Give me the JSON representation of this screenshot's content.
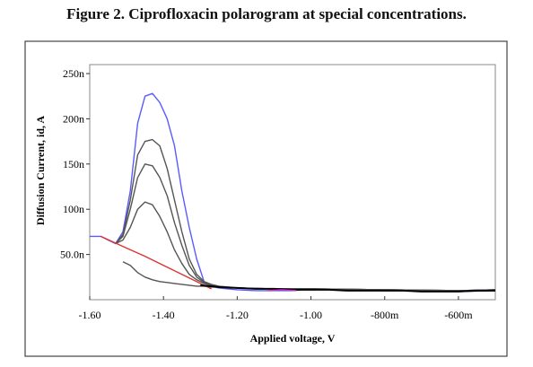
{
  "caption": "Figure 2. Ciprofloxacin polarogram at special concentrations.",
  "colors": {
    "outer_frame": "#444444",
    "plot_border": "#888888",
    "top_curve": "#5a5aff",
    "lower_curves": "#555555",
    "baseline": "#dd3333",
    "dense_trace": "#000000",
    "faint_trace": "#cc33cc"
  },
  "chart_data": {
    "type": "line",
    "title": "",
    "xlabel": "Applied voltage, V",
    "ylabel": "Diffusion Current, id, A",
    "x_unit": "V",
    "y_unit": "A",
    "xlim": [
      -1.6,
      -0.5
    ],
    "ylim": [
      0,
      2.5e-07
    ],
    "x_ticks": [
      {
        "value": -1.6,
        "label": "-1.60"
      },
      {
        "value": -1.4,
        "label": "-1.40"
      },
      {
        "value": -1.2,
        "label": "-1.20"
      },
      {
        "value": -1.0,
        "label": "-1.00"
      },
      {
        "value": -0.8,
        "label": "-800m"
      },
      {
        "value": -0.6,
        "label": "-600m"
      }
    ],
    "y_ticks": [
      {
        "value": 5e-08,
        "label": "50.0n"
      },
      {
        "value": 1e-07,
        "label": "100n"
      },
      {
        "value": 1.5e-07,
        "label": "150n"
      },
      {
        "value": 2e-07,
        "label": "200n"
      },
      {
        "value": 2.5e-07,
        "label": "250n"
      }
    ],
    "grid": false,
    "legend": "none",
    "series": [
      {
        "color": "#5a5aff",
        "x": [
          -1.6,
          -1.57,
          -1.55,
          -1.53,
          -1.51,
          -1.49,
          -1.47,
          -1.45,
          -1.43,
          -1.41,
          -1.39,
          -1.37,
          -1.35,
          -1.33,
          -1.31,
          -1.29,
          -1.27,
          -1.25,
          -1.2,
          -1.15,
          -1.1,
          -1.05,
          -1.0,
          -0.9,
          -0.8,
          -0.7,
          -0.6,
          -0.5
        ],
        "y": [
          7e-08,
          7e-08,
          6.6e-08,
          6.2e-08,
          7.5e-08,
          1.2e-07,
          1.95e-07,
          2.25e-07,
          2.28e-07,
          2.18e-07,
          2e-07,
          1.7e-07,
          1.2e-07,
          8e-08,
          4.5e-08,
          2e-08,
          1.5e-08,
          1.3e-08,
          1.1e-08,
          1e-08,
          1e-08,
          1e-08,
          1.2e-08,
          1.1e-08,
          1e-08,
          1e-08,
          9e-09,
          1e-08
        ]
      },
      {
        "color": "#555555",
        "x": [
          -1.53,
          -1.51,
          -1.49,
          -1.47,
          -1.45,
          -1.43,
          -1.41,
          -1.39,
          -1.37,
          -1.35,
          -1.33,
          -1.31,
          -1.29,
          -1.27,
          -1.25,
          -1.2,
          -1.1,
          -1.0,
          -0.8,
          -0.6,
          -0.5
        ],
        "y": [
          6.2e-08,
          7.2e-08,
          1.1e-07,
          1.6e-07,
          1.75e-07,
          1.77e-07,
          1.7e-07,
          1.45e-07,
          1.1e-07,
          7.5e-08,
          4.5e-08,
          2.8e-08,
          2e-08,
          1.7e-08,
          1.5e-08,
          1.3e-08,
          1.2e-08,
          1.2e-08,
          1.1e-08,
          1e-08,
          1.1e-08
        ]
      },
      {
        "color": "#555555",
        "x": [
          -1.53,
          -1.51,
          -1.49,
          -1.47,
          -1.45,
          -1.43,
          -1.41,
          -1.39,
          -1.37,
          -1.35,
          -1.33,
          -1.31,
          -1.29,
          -1.27,
          -1.25,
          -1.2,
          -1.1,
          -1.0,
          -0.8,
          -0.6,
          -0.5
        ],
        "y": [
          6.2e-08,
          7e-08,
          1e-07,
          1.35e-07,
          1.5e-07,
          1.48e-07,
          1.35e-07,
          1.15e-07,
          8.5e-08,
          6e-08,
          3.8e-08,
          2.5e-08,
          1.9e-08,
          1.6e-08,
          1.4e-08,
          1.3e-08,
          1.2e-08,
          1.2e-08,
          1.1e-08,
          1e-08,
          1.1e-08
        ]
      },
      {
        "color": "#555555",
        "x": [
          -1.53,
          -1.51,
          -1.49,
          -1.47,
          -1.45,
          -1.43,
          -1.41,
          -1.39,
          -1.37,
          -1.35,
          -1.33,
          -1.31,
          -1.29,
          -1.27,
          -1.25,
          -1.2,
          -1.1,
          -1.0,
          -0.8,
          -0.6,
          -0.5
        ],
        "y": [
          6.2e-08,
          6.6e-08,
          8e-08,
          1e-07,
          1.08e-07,
          1.05e-07,
          9.2e-08,
          7.5e-08,
          5.5e-08,
          4e-08,
          2.8e-08,
          2.2e-08,
          1.8e-08,
          1.6e-08,
          1.4e-08,
          1.3e-08,
          1.2e-08,
          1.2e-08,
          1.1e-08,
          1e-08,
          1.1e-08
        ]
      },
      {
        "color": "#555555",
        "x": [
          -1.51,
          -1.49,
          -1.47,
          -1.45,
          -1.43,
          -1.41,
          -1.39,
          -1.37,
          -1.35,
          -1.33,
          -1.31,
          -1.29,
          -1.27,
          -1.25,
          -1.2,
          -1.1,
          -1.0,
          -0.8,
          -0.6,
          -0.5
        ],
        "y": [
          4.2e-08,
          3.8e-08,
          3e-08,
          2.5e-08,
          2.2e-08,
          2e-08,
          1.9e-08,
          1.8e-08,
          1.7e-08,
          1.6e-08,
          1.5e-08,
          1.5e-08,
          1.4e-08,
          1.4e-08,
          1.3e-08,
          1.2e-08,
          1.2e-08,
          1.1e-08,
          1e-08,
          1.1e-08
        ]
      },
      {
        "color": "#dd3333",
        "x": [
          -1.57,
          -1.5,
          -1.45,
          -1.4,
          -1.35,
          -1.3,
          -1.27
        ],
        "y": [
          7e-08,
          5.7e-08,
          4.8e-08,
          3.8e-08,
          2.8e-08,
          1.8e-08,
          1.2e-08
        ]
      },
      {
        "color": "#000000",
        "x": [
          -1.3,
          -1.25,
          -1.2,
          -1.15,
          -1.1,
          -1.05,
          -1.0,
          -0.95,
          -0.9,
          -0.85,
          -0.8,
          -0.75,
          -0.7,
          -0.65,
          -0.6,
          -0.55,
          -0.5
        ],
        "y": [
          1.6e-08,
          1.4e-08,
          1.3e-08,
          1.2e-08,
          1.2e-08,
          1.1e-08,
          1.1e-08,
          1.1e-08,
          1e-08,
          1e-08,
          1e-08,
          1e-08,
          9e-09,
          9e-09,
          9e-09,
          1e-08,
          1e-08
        ]
      },
      {
        "color": "#cc33cc",
        "x": [
          -1.12,
          -1.08,
          -1.04
        ],
        "y": [
          1e-08,
          1.1e-08,
          1e-08
        ]
      }
    ]
  }
}
